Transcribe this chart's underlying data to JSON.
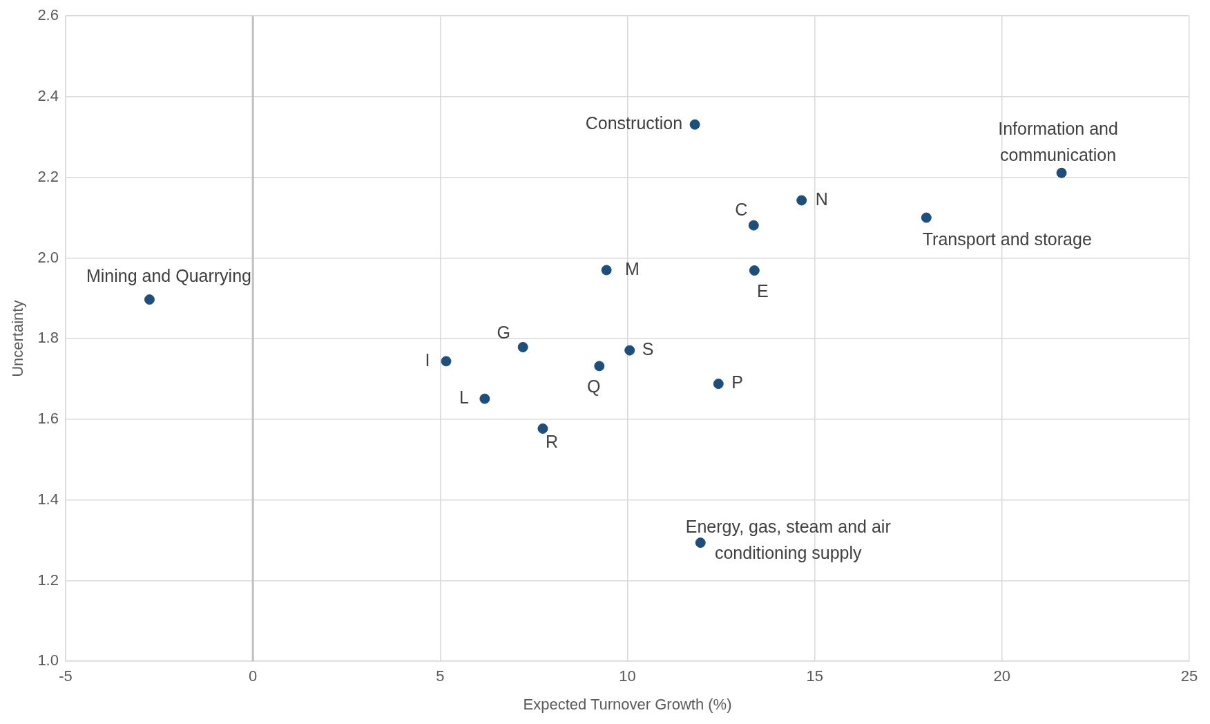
{
  "chart_data": {
    "type": "scatter",
    "xlabel": "Expected Turnover Growth (%)",
    "ylabel": "Uncertainty",
    "x": [
      -2.76,
      11.8,
      21.59,
      17.98,
      14.65,
      13.37,
      13.39,
      9.44,
      7.21,
      5.16,
      10.06,
      9.25,
      12.43,
      6.19,
      7.74,
      11.95
    ],
    "series": [
      {
        "color": "#1f4e79",
        "values": [
          1.897,
          2.331,
          2.211,
          2.1,
          2.143,
          2.081,
          1.969,
          1.97,
          1.779,
          1.744,
          1.771,
          1.732,
          1.688,
          1.651,
          1.577,
          1.294
        ]
      }
    ],
    "xlim": [
      -5,
      25
    ],
    "xticks": [
      -5,
      0,
      5,
      10,
      15,
      20,
      25
    ],
    "ylim": [
      1.0,
      2.6
    ],
    "yticks": [
      {
        "value": 1.0,
        "label": "1.0"
      },
      {
        "value": 1.2,
        "label": "1.2"
      },
      {
        "value": 1.4,
        "label": "1.4"
      },
      {
        "value": 1.6,
        "label": "1.6"
      },
      {
        "value": 1.8,
        "label": "1.8"
      },
      {
        "value": 2.0,
        "label": "2.0"
      },
      {
        "value": 2.2,
        "label": "2.2"
      },
      {
        "value": 2.4,
        "label": "2.4"
      },
      {
        "value": 2.6,
        "label": "2.6"
      }
    ],
    "ref_lines": [
      {
        "axis": "x",
        "value": 0,
        "color": "#bfbfbf"
      }
    ],
    "grid": true,
    "legend": false,
    "marker": "circle",
    "annotations": [
      {
        "text": "Mining and Quarrying",
        "x": -2.76,
        "y": 1.897
      },
      {
        "text": "Construction",
        "x": 11.8,
        "y": 2.331
      },
      {
        "text": "Information and communication",
        "x": 21.59,
        "y": 2.211
      },
      {
        "text": "Transport and storage",
        "x": 17.98,
        "y": 2.1
      },
      {
        "text": "N",
        "x": 14.65,
        "y": 2.143
      },
      {
        "text": "C",
        "x": 13.37,
        "y": 2.081
      },
      {
        "text": "E",
        "x": 13.39,
        "y": 1.969
      },
      {
        "text": "M",
        "x": 9.44,
        "y": 1.97
      },
      {
        "text": "G",
        "x": 7.21,
        "y": 1.779
      },
      {
        "text": "I",
        "x": 5.16,
        "y": 1.744
      },
      {
        "text": "S",
        "x": 10.06,
        "y": 1.771
      },
      {
        "text": "Q",
        "x": 9.25,
        "y": 1.732
      },
      {
        "text": "P",
        "x": 12.43,
        "y": 1.688
      },
      {
        "text": "L",
        "x": 6.19,
        "y": 1.651
      },
      {
        "text": "R",
        "x": 7.74,
        "y": 1.577
      },
      {
        "text": "Energy, gas, steam and air conditioning supply",
        "x": 11.95,
        "y": 1.294
      }
    ]
  }
}
